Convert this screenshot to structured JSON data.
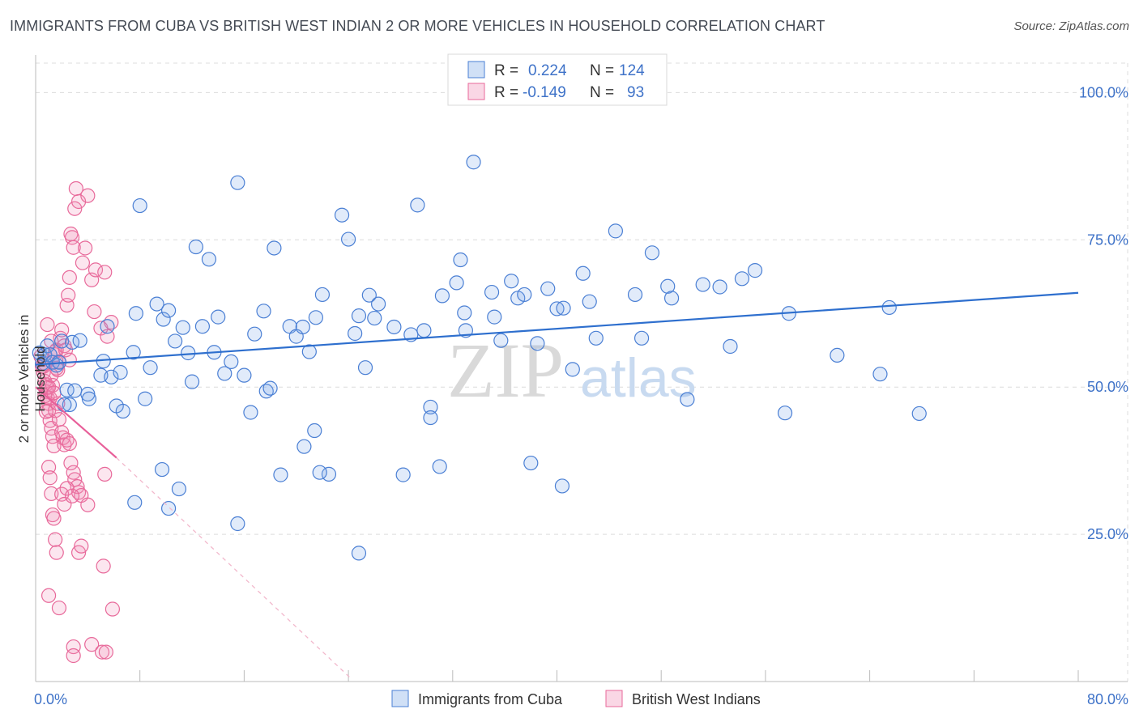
{
  "header": {
    "title": "IMMIGRANTS FROM CUBA VS BRITISH WEST INDIAN 2 OR MORE VEHICLES IN HOUSEHOLD CORRELATION CHART",
    "source": "Source: ZipAtlas.com"
  },
  "watermark": {
    "zip": "ZIP",
    "atlas": "atlas"
  },
  "colors": {
    "blue": "#4a7fd4",
    "blue_fill": "rgba(120,165,230,0.22)",
    "blue_line": "#2e6fce",
    "pink": "#e8699a",
    "pink_fill": "rgba(240,140,180,0.22)",
    "pink_line": "#e8609a",
    "axis_label": "#3e72c8",
    "grid": "#dcdcdc"
  },
  "legend": {
    "rows": [
      {
        "r_label": "R =",
        "r_value": "0.224",
        "n_label": "N =",
        "n_value": "124",
        "color": "blue"
      },
      {
        "r_label": "R =",
        "r_value": "-0.149",
        "n_label": "N =",
        "n_value": "93",
        "color": "pink"
      }
    ]
  },
  "bottom_legend": [
    {
      "label": "Immigrants from Cuba",
      "color": "blue"
    },
    {
      "label": "British West Indians",
      "color": "pink"
    }
  ],
  "chart_data": {
    "type": "scatter",
    "title": "IMMIGRANTS FROM CUBA VS BRITISH WEST INDIAN 2 OR MORE VEHICLES IN HOUSEHOLD CORRELATION CHART",
    "xlabel": "",
    "ylabel": "2 or more Vehicles in Household",
    "xlim": [
      0,
      80
    ],
    "ylim": [
      0,
      105
    ],
    "x_tick_labels": [
      "0.0%",
      "80.0%"
    ],
    "y_ticks": [
      25,
      50,
      75,
      100
    ],
    "y_tick_labels": [
      "25.0%",
      "50.0%",
      "75.0%",
      "100.0%"
    ],
    "grid": true,
    "series": [
      {
        "name": "Immigrants from Cuba",
        "color": "blue",
        "trend": {
          "x0": 0,
          "y0": 53.8,
          "x1": 80,
          "y1": 66.0
        },
        "points": [
          [
            0.3,
            55.8
          ],
          [
            0.5,
            54.0
          ],
          [
            0.7,
            55.5
          ],
          [
            0.9,
            57.0
          ],
          [
            1.1,
            55.5
          ],
          [
            1.3,
            54.2
          ],
          [
            1.6,
            53.7
          ],
          [
            1.8,
            54.2
          ],
          [
            2.0,
            57.8
          ],
          [
            2.4,
            49.5
          ],
          [
            2.6,
            47.0
          ],
          [
            2.8,
            57.6
          ],
          [
            3.0,
            49.4
          ],
          [
            3.4,
            57.9
          ],
          [
            4.0,
            48.8
          ],
          [
            4.1,
            48.0
          ],
          [
            5.0,
            52.0
          ],
          [
            5.2,
            54.4
          ],
          [
            5.5,
            60.3
          ],
          [
            5.8,
            51.7
          ],
          [
            6.2,
            46.8
          ],
          [
            6.5,
            52.5
          ],
          [
            6.7,
            45.9
          ],
          [
            7.5,
            55.9
          ],
          [
            7.7,
            62.5
          ],
          [
            8.0,
            80.8
          ],
          [
            8.4,
            48.0
          ],
          [
            8.8,
            53.3
          ],
          [
            9.3,
            64.1
          ],
          [
            9.8,
            61.5
          ],
          [
            10.2,
            63.0
          ],
          [
            10.7,
            57.8
          ],
          [
            11.3,
            60.1
          ],
          [
            11.7,
            55.8
          ],
          [
            12.0,
            50.9
          ],
          [
            12.3,
            73.8
          ],
          [
            12.8,
            60.3
          ],
          [
            13.3,
            71.7
          ],
          [
            13.7,
            55.9
          ],
          [
            14.0,
            61.9
          ],
          [
            14.5,
            52.3
          ],
          [
            15.0,
            54.3
          ],
          [
            15.5,
            84.7
          ],
          [
            16.0,
            52.0
          ],
          [
            16.5,
            45.7
          ],
          [
            16.8,
            59.0
          ],
          [
            17.5,
            62.9
          ],
          [
            17.7,
            49.3
          ],
          [
            18.0,
            49.8
          ],
          [
            18.3,
            73.6
          ],
          [
            18.8,
            35.1
          ],
          [
            19.5,
            60.3
          ],
          [
            20.0,
            58.6
          ],
          [
            20.5,
            60.2
          ],
          [
            21.0,
            56.0
          ],
          [
            21.5,
            61.8
          ],
          [
            22.0,
            65.7
          ],
          [
            22.5,
            35.2
          ],
          [
            23.5,
            79.2
          ],
          [
            24.0,
            75.1
          ],
          [
            24.5,
            59.1
          ],
          [
            24.8,
            62.1
          ],
          [
            25.3,
            53.3
          ],
          [
            25.6,
            65.6
          ],
          [
            26.0,
            61.7
          ],
          [
            26.3,
            64.1
          ],
          [
            27.5,
            60.2
          ],
          [
            28.2,
            35.1
          ],
          [
            28.8,
            58.9
          ],
          [
            29.3,
            80.9
          ],
          [
            29.8,
            59.6
          ],
          [
            30.3,
            46.6
          ],
          [
            31.0,
            36.5
          ],
          [
            31.2,
            65.5
          ],
          [
            32.3,
            67.7
          ],
          [
            32.6,
            71.6
          ],
          [
            32.9,
            62.6
          ],
          [
            33.0,
            59.6
          ],
          [
            33.6,
            88.2
          ],
          [
            35.0,
            66.1
          ],
          [
            35.2,
            61.9
          ],
          [
            35.7,
            57.9
          ],
          [
            36.5,
            68.0
          ],
          [
            37.0,
            65.1
          ],
          [
            37.5,
            65.7
          ],
          [
            38.0,
            37.1
          ],
          [
            38.5,
            57.4
          ],
          [
            39.3,
            66.7
          ],
          [
            40.0,
            63.3
          ],
          [
            40.4,
            33.2
          ],
          [
            40.5,
            63.4
          ],
          [
            41.2,
            53.0
          ],
          [
            42.0,
            69.3
          ],
          [
            42.5,
            64.5
          ],
          [
            43.0,
            58.3
          ],
          [
            44.5,
            76.5
          ],
          [
            46.0,
            65.7
          ],
          [
            46.5,
            58.3
          ],
          [
            47.3,
            72.8
          ],
          [
            48.5,
            67.1
          ],
          [
            48.8,
            65.1
          ],
          [
            50.0,
            47.9
          ],
          [
            51.2,
            67.4
          ],
          [
            52.5,
            67.0
          ],
          [
            53.3,
            56.9
          ],
          [
            54.2,
            68.4
          ],
          [
            55.2,
            69.8
          ],
          [
            57.5,
            45.6
          ],
          [
            57.8,
            62.5
          ],
          [
            61.5,
            55.4
          ],
          [
            64.8,
            52.2
          ],
          [
            65.5,
            63.5
          ],
          [
            67.8,
            45.5
          ],
          [
            2.2,
            47.0
          ],
          [
            9.7,
            36.0
          ],
          [
            11.0,
            32.7
          ],
          [
            10.2,
            29.4
          ],
          [
            7.6,
            30.4
          ],
          [
            15.5,
            26.8
          ],
          [
            20.6,
            39.9
          ],
          [
            21.4,
            42.6
          ],
          [
            21.8,
            35.5
          ],
          [
            24.8,
            21.8
          ],
          [
            30.3,
            44.8
          ]
        ]
      },
      {
        "name": "British West Indians",
        "color": "pink",
        "trend": {
          "x0": 0,
          "y0": 50.0,
          "x1": 6.2,
          "y1": 38.0,
          "ext_x1": 24.2,
          "ext_y1": 0.5
        },
        "points": [
          [
            0.4,
            55.2
          ],
          [
            0.5,
            53.5
          ],
          [
            0.6,
            52.5
          ],
          [
            0.7,
            51.0
          ],
          [
            0.8,
            50.4
          ],
          [
            0.8,
            49.2
          ],
          [
            0.9,
            48.2
          ],
          [
            1.0,
            47.2
          ],
          [
            1.0,
            46.0
          ],
          [
            1.1,
            44.3
          ],
          [
            1.2,
            43.0
          ],
          [
            1.3,
            41.6
          ],
          [
            1.4,
            40.0
          ],
          [
            0.6,
            53.5
          ],
          [
            0.7,
            54.0
          ],
          [
            0.9,
            49.9
          ],
          [
            1.1,
            48.1
          ],
          [
            1.3,
            50.3
          ],
          [
            1.5,
            55.5
          ],
          [
            1.6,
            56.3
          ],
          [
            1.7,
            52.9
          ],
          [
            1.8,
            54.3
          ],
          [
            1.9,
            58.3
          ],
          [
            2.0,
            59.7
          ],
          [
            2.2,
            57.0
          ],
          [
            2.4,
            63.9
          ],
          [
            2.5,
            65.6
          ],
          [
            2.6,
            68.6
          ],
          [
            2.7,
            76.0
          ],
          [
            2.8,
            75.4
          ],
          [
            2.9,
            73.7
          ],
          [
            3.0,
            80.3
          ],
          [
            3.1,
            83.7
          ],
          [
            3.3,
            81.5
          ],
          [
            3.6,
            71.1
          ],
          [
            3.8,
            73.6
          ],
          [
            4.0,
            82.5
          ],
          [
            4.3,
            68.2
          ],
          [
            4.5,
            62.8
          ],
          [
            4.6,
            69.9
          ],
          [
            5.0,
            60.0
          ],
          [
            5.3,
            69.5
          ],
          [
            5.5,
            58.6
          ],
          [
            5.8,
            61.0
          ],
          [
            1.5,
            46.0
          ],
          [
            1.7,
            47.2
          ],
          [
            1.8,
            44.5
          ],
          [
            2.0,
            42.3
          ],
          [
            2.1,
            41.4
          ],
          [
            2.2,
            40.2
          ],
          [
            2.4,
            41.0
          ],
          [
            2.6,
            40.4
          ],
          [
            2.7,
            37.1
          ],
          [
            2.9,
            35.5
          ],
          [
            3.0,
            34.3
          ],
          [
            3.2,
            33.1
          ],
          [
            3.3,
            32.1
          ],
          [
            3.5,
            31.6
          ],
          [
            1.0,
            36.4
          ],
          [
            1.1,
            34.6
          ],
          [
            1.2,
            31.9
          ],
          [
            1.3,
            28.3
          ],
          [
            1.4,
            27.7
          ],
          [
            1.5,
            24.1
          ],
          [
            1.6,
            21.9
          ],
          [
            2.0,
            31.8
          ],
          [
            2.2,
            30.1
          ],
          [
            2.4,
            32.8
          ],
          [
            2.8,
            31.5
          ],
          [
            3.3,
            21.9
          ],
          [
            3.5,
            23.0
          ],
          [
            4.0,
            30.0
          ],
          [
            5.3,
            35.2
          ],
          [
            5.2,
            19.6
          ],
          [
            1.0,
            14.6
          ],
          [
            1.8,
            12.5
          ],
          [
            2.9,
            5.9
          ],
          [
            2.9,
            4.4
          ],
          [
            4.3,
            6.3
          ],
          [
            5.1,
            5.0
          ],
          [
            5.4,
            5.0
          ],
          [
            5.9,
            12.3
          ],
          [
            0.9,
            60.6
          ],
          [
            1.2,
            57.8
          ],
          [
            1.5,
            56.0
          ],
          [
            1.6,
            53.2
          ],
          [
            2.3,
            56.3
          ],
          [
            2.6,
            54.6
          ],
          [
            0.7,
            48.5
          ],
          [
            0.8,
            45.8
          ],
          [
            1.0,
            50.0
          ],
          [
            1.2,
            52.0
          ],
          [
            1.4,
            49.0
          ]
        ]
      }
    ]
  }
}
